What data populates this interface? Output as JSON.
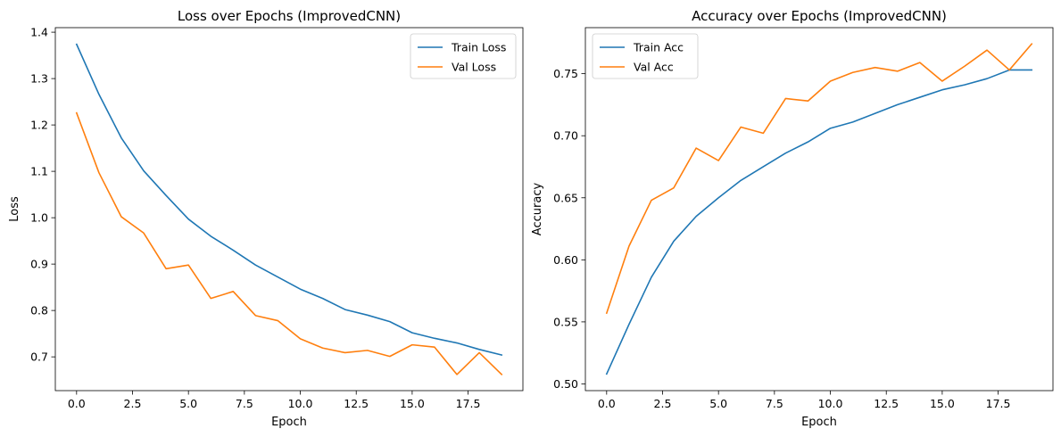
{
  "chart_data": [
    {
      "type": "line",
      "title": "Loss over Epochs (ImprovedCNN)",
      "xlabel": "Epoch",
      "ylabel": "Loss",
      "xlim": [
        -0.95,
        19.95
      ],
      "ylim": [
        0.6272,
        1.4098
      ],
      "xticks": [
        0,
        2.5,
        5,
        7.5,
        10,
        12.5,
        15,
        17.5
      ],
      "xtick_labels": [
        "0.0",
        "2.5",
        "5.0",
        "7.5",
        "10.0",
        "12.5",
        "15.0",
        "17.5"
      ],
      "yticks": [
        0.7,
        0.8,
        0.9,
        1.0,
        1.1,
        1.2,
        1.3,
        1.4
      ],
      "ytick_labels": [
        "0.7",
        "0.8",
        "0.9",
        "1.0",
        "1.1",
        "1.2",
        "1.3",
        "1.4"
      ],
      "grid": false,
      "legend_position": "top-right",
      "x": [
        0,
        1,
        2,
        3,
        4,
        5,
        6,
        7,
        8,
        9,
        10,
        11,
        12,
        13,
        14,
        15,
        16,
        17,
        18,
        19
      ],
      "series": [
        {
          "name": "Train Loss",
          "color": "#1f77b4",
          "values": [
            1.374,
            1.266,
            1.172,
            1.101,
            1.048,
            0.997,
            0.96,
            0.93,
            0.898,
            0.872,
            0.846,
            0.826,
            0.802,
            0.79,
            0.776,
            0.752,
            0.74,
            0.73,
            0.716,
            0.704
          ]
        },
        {
          "name": "Val Loss",
          "color": "#ff7f0e",
          "values": [
            1.226,
            1.097,
            1.002,
            0.967,
            0.89,
            0.898,
            0.826,
            0.841,
            0.789,
            0.778,
            0.739,
            0.719,
            0.709,
            0.714,
            0.701,
            0.726,
            0.721,
            0.662,
            0.709,
            0.662
          ]
        }
      ]
    },
    {
      "type": "line",
      "title": "Accuracy over Epochs (ImprovedCNN)",
      "xlabel": "Epoch",
      "ylabel": "Accuracy",
      "xlim": [
        -0.95,
        19.95
      ],
      "ylim": [
        0.4946,
        0.7871
      ],
      "xticks": [
        0,
        2.5,
        5,
        7.5,
        10,
        12.5,
        15,
        17.5
      ],
      "xtick_labels": [
        "0.0",
        "2.5",
        "5.0",
        "7.5",
        "10.0",
        "12.5",
        "15.0",
        "17.5"
      ],
      "yticks": [
        0.5,
        0.55,
        0.6,
        0.65,
        0.7,
        0.75
      ],
      "ytick_labels": [
        "0.50",
        "0.55",
        "0.60",
        "0.65",
        "0.70",
        "0.75"
      ],
      "grid": false,
      "legend_position": "top-left",
      "x": [
        0,
        1,
        2,
        3,
        4,
        5,
        6,
        7,
        8,
        9,
        10,
        11,
        12,
        13,
        14,
        15,
        16,
        17,
        18,
        19
      ],
      "series": [
        {
          "name": "Train Acc",
          "color": "#1f77b4",
          "values": [
            0.508,
            0.548,
            0.586,
            0.615,
            0.635,
            0.65,
            0.664,
            0.675,
            0.686,
            0.695,
            0.706,
            0.711,
            0.718,
            0.725,
            0.731,
            0.737,
            0.741,
            0.746,
            0.753,
            0.753
          ]
        },
        {
          "name": "Val Acc",
          "color": "#ff7f0e",
          "values": [
            0.557,
            0.611,
            0.648,
            0.658,
            0.69,
            0.68,
            0.707,
            0.702,
            0.73,
            0.728,
            0.744,
            0.751,
            0.755,
            0.752,
            0.759,
            0.744,
            0.756,
            0.769,
            0.753,
            0.774
          ]
        }
      ]
    }
  ]
}
